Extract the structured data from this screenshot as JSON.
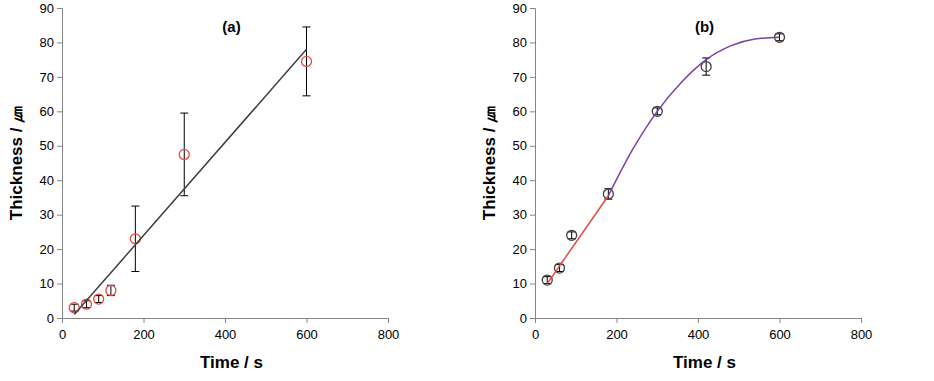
{
  "chart_data": [
    {
      "type": "scatter",
      "title": "(a)",
      "x_label": "Time / s",
      "y_label": "Thickness / ㎛",
      "xlim": [
        0,
        800
      ],
      "xticks": [
        0,
        200,
        400,
        600,
        800
      ],
      "ylim": [
        0,
        90
      ],
      "yticks": [
        0,
        10,
        20,
        30,
        40,
        50,
        60,
        70,
        80,
        90
      ],
      "grid": false,
      "series": [
        {
          "type": "scatter",
          "color": "#e8473f",
          "marker": "circle",
          "x": [
            30,
            60,
            90,
            120,
            180,
            300,
            600
          ],
          "values": [
            3,
            4,
            5.5,
            8,
            23,
            47.5,
            74.5
          ],
          "errors": [
            1,
            1,
            1,
            1.5,
            9.5,
            12,
            10
          ]
        },
        {
          "type": "line",
          "color": "#404040",
          "line_style": "solid",
          "x": [
            30,
            600
          ],
          "values": [
            1,
            78
          ]
        }
      ]
    },
    {
      "type": "scatter",
      "title": "(b)",
      "x_label": "Time / s",
      "y_label": "Thickness / ㎛",
      "xlim": [
        0,
        800
      ],
      "xticks": [
        0,
        200,
        400,
        600,
        800
      ],
      "ylim": [
        0,
        90
      ],
      "yticks": [
        0,
        10,
        20,
        30,
        40,
        50,
        60,
        70,
        80,
        90
      ],
      "grid": false,
      "series": [
        {
          "type": "scatter",
          "color": "#404040",
          "marker": "circle",
          "x": [
            30,
            60,
            90,
            180,
            300,
            420,
            600
          ],
          "values": [
            11,
            14.5,
            24,
            36,
            60,
            73,
            81.5
          ],
          "errors": [
            1,
            1,
            1,
            1.5,
            1,
            2.5,
            1
          ]
        },
        {
          "type": "line",
          "color": "#e8473f",
          "line_style": "solid",
          "x": [
            30,
            180
          ],
          "values": [
            10,
            35.5
          ]
        },
        {
          "type": "line",
          "color": "#7b3fa6",
          "line_style": "solid",
          "x": [
            180,
            240,
            300,
            360,
            420,
            480,
            540,
            600
          ],
          "values": [
            35.5,
            49,
            60,
            68.5,
            75,
            79,
            81,
            81.5
          ]
        }
      ]
    }
  ]
}
